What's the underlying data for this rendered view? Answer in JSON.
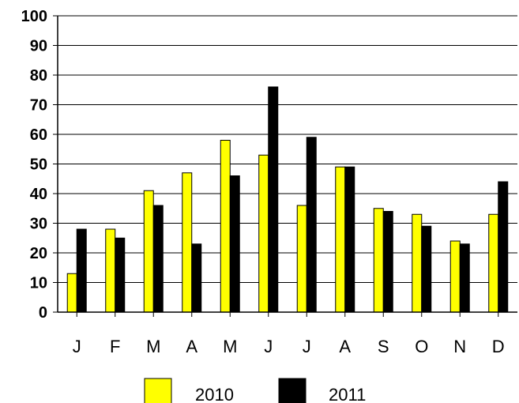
{
  "chart_data": {
    "type": "bar",
    "title": "",
    "xlabel": "",
    "ylabel": "",
    "ylim": [
      0,
      100
    ],
    "yticks": [
      "0",
      "10",
      "20",
      "30",
      "40",
      "50",
      "60",
      "70",
      "80",
      "90",
      "100"
    ],
    "categories": [
      "J",
      "F",
      "M",
      "A",
      "M",
      "J",
      "J",
      "A",
      "S",
      "O",
      "N",
      "D"
    ],
    "grid": true,
    "legend_position": "bottom",
    "series": [
      {
        "name": "2010",
        "color": "#ffff00",
        "values": [
          13,
          28,
          41,
          47,
          58,
          53,
          36,
          49,
          35,
          33,
          24,
          33
        ]
      },
      {
        "name": "2011",
        "color": "#000000",
        "values": [
          28,
          25,
          36,
          23,
          46,
          76,
          59,
          49,
          34,
          29,
          23,
          44
        ]
      }
    ]
  }
}
